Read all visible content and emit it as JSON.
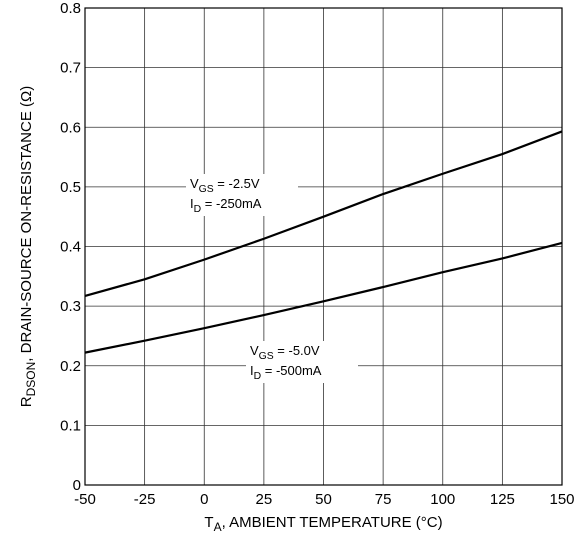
{
  "chart_data": {
    "type": "line",
    "x_label": {
      "text": "T",
      "sub": "A",
      "after": ", AMBIENT TEMPERATURE (°C)"
    },
    "y_label": {
      "text": "R",
      "sub": "DSON",
      "after": ", DRAIN-SOURCE ON-RESISTANCE (Ω)"
    },
    "x": [
      -50,
      -25,
      0,
      25,
      50,
      75,
      100,
      125,
      150
    ],
    "series": [
      {
        "color": "#000000",
        "values": [
          0.317,
          0.345,
          0.378,
          0.413,
          0.45,
          0.488,
          0.522,
          0.555,
          0.593
        ]
      },
      {
        "color": "#000000",
        "values": [
          0.222,
          0.242,
          0.263,
          0.285,
          0.308,
          0.332,
          0.357,
          0.38,
          0.406
        ]
      }
    ],
    "annotations": [
      {
        "lines": [
          {
            "text": "V",
            "sub": "GS",
            "after": " = -2.5V"
          },
          {
            "text": "I",
            "sub": "D",
            "after": " = -250mA"
          }
        ]
      },
      {
        "lines": [
          {
            "text": "V",
            "sub": "GS",
            "after": " = -5.0V"
          },
          {
            "text": "I",
            "sub": "D",
            "after": " = -500mA"
          }
        ]
      }
    ],
    "xlim": [
      -50,
      150
    ],
    "xticks": [
      -50,
      -25,
      0,
      25,
      50,
      75,
      100,
      125,
      150
    ],
    "ylim": [
      0,
      0.8
    ],
    "yticks": [
      0,
      0.1,
      0.2,
      0.3,
      0.4,
      0.5,
      0.6,
      0.7,
      0.8
    ],
    "grid": true
  }
}
